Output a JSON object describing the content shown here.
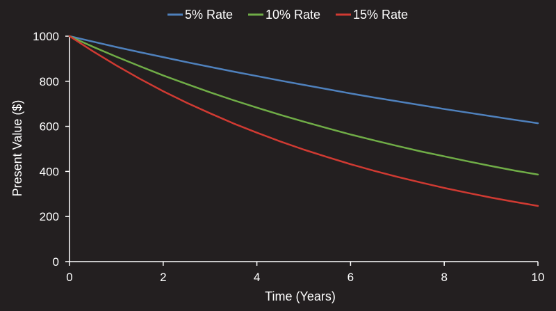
{
  "chart_data": {
    "type": "line",
    "title": "",
    "xlabel": "Time (Years)",
    "ylabel": "Present Value ($)",
    "xlim": [
      0,
      10
    ],
    "ylim": [
      0,
      1000
    ],
    "x_ticks": [
      0,
      2,
      4,
      6,
      8,
      10
    ],
    "y_ticks": [
      0,
      200,
      400,
      600,
      800,
      1000
    ],
    "x_tick_labels": [
      "0",
      "2",
      "4",
      "6",
      "8",
      "10"
    ],
    "y_tick_labels": [
      "0",
      "200",
      "400",
      "600",
      "800",
      "1000"
    ],
    "grid": false,
    "legend_position": "top-center",
    "x": [
      0,
      0.5,
      1,
      1.5,
      2,
      2.5,
      3,
      3.5,
      4,
      4.5,
      5,
      5.5,
      6,
      6.5,
      7,
      7.5,
      8,
      8.5,
      9,
      9.5,
      10
    ],
    "series": [
      {
        "name": "5% Rate",
        "color": "#4f81bd",
        "values": [
          1000,
          976,
          952,
          929,
          907,
          885,
          864,
          843,
          823,
          803,
          784,
          765,
          746,
          728,
          711,
          694,
          677,
          661,
          645,
          629,
          614
        ]
      },
      {
        "name": "10% Rate",
        "color": "#70ad47",
        "values": [
          1000,
          953,
          909,
          867,
          826,
          788,
          751,
          716,
          683,
          651,
          621,
          592,
          564,
          538,
          513,
          489,
          467,
          445,
          424,
          404,
          386
        ]
      },
      {
        "name": "15% Rate",
        "color": "#d03a32",
        "values": [
          1000,
          933,
          870,
          811,
          756,
          705,
          658,
          613,
          572,
          533,
          497,
          464,
          432,
          403,
          376,
          351,
          327,
          305,
          284,
          265,
          247
        ]
      }
    ]
  }
}
